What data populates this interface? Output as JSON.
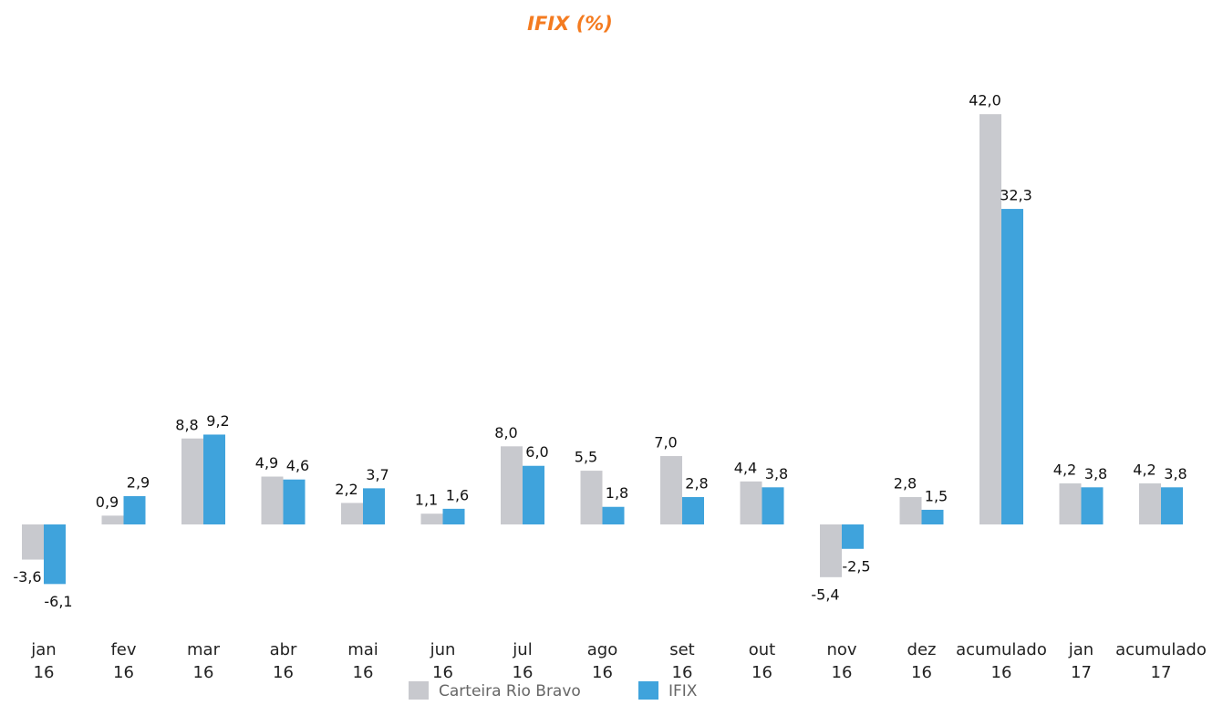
{
  "chart_data": {
    "type": "bar",
    "title": "IFIX (%)",
    "categories": [
      "jan\n16",
      "fev\n16",
      "mar\n16",
      "abr\n16",
      "mai\n16",
      "jun\n16",
      "jul\n16",
      "ago\n16",
      "set\n16",
      "out\n16",
      "nov\n16",
      "dez\n16",
      "acumulado\n16",
      "jan\n17",
      "acumulado\n17"
    ],
    "series": [
      {
        "name": "Carteira Rio Bravo",
        "color": "#c8c9ce",
        "values": [
          -3.6,
          0.9,
          8.8,
          4.9,
          2.2,
          1.1,
          8.0,
          5.5,
          7.0,
          4.4,
          -5.4,
          2.8,
          42.0,
          4.2,
          4.2
        ],
        "value_labels": [
          "-3,6",
          "0,9",
          "8,8",
          "4,9",
          "2,2",
          "1,1",
          "8,0",
          "5,5",
          "7,0",
          "4,4",
          "-5,4",
          "2,8",
          "42,0",
          "4,2",
          "4,2"
        ]
      },
      {
        "name": "IFIX",
        "color": "#3fa3dc",
        "values": [
          -6.1,
          2.9,
          9.2,
          4.6,
          3.7,
          1.6,
          6.0,
          1.8,
          2.8,
          3.8,
          -2.5,
          1.5,
          32.3,
          3.8,
          3.8
        ],
        "value_labels": [
          "-6,1",
          "2,9",
          "9,2",
          "4,6",
          "3,7",
          "1,6",
          "6,0",
          "1,8",
          "2,8",
          "3,8",
          "-2,5",
          "1,5",
          "32,3",
          "3,8",
          "3,8"
        ]
      }
    ]
  }
}
